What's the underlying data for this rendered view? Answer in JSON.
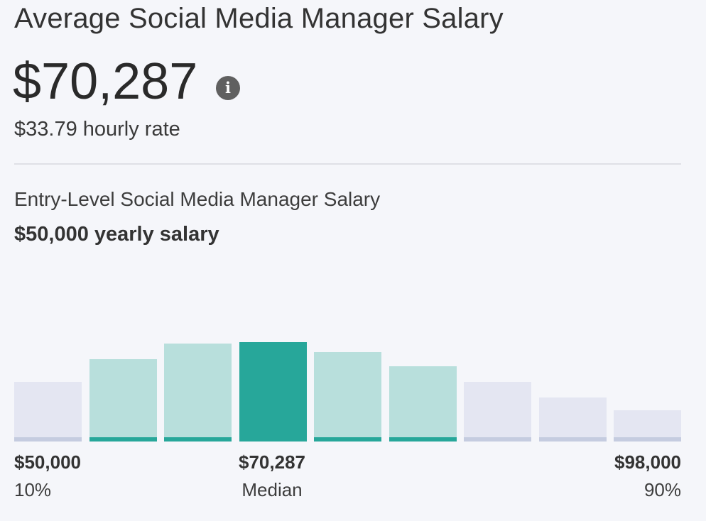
{
  "header": {
    "title": "Average Social Media Manager Salary"
  },
  "salary": {
    "amount": "$70,287",
    "info_icon": "info-icon",
    "hourly": "$33.79 hourly rate"
  },
  "entry_level": {
    "label": "Entry-Level Social Media Manager Salary",
    "value": "$50,000 yearly salary"
  },
  "chart_data": {
    "type": "bar",
    "values": [
      42,
      58,
      69,
      70,
      63,
      53,
      42,
      31,
      22
    ],
    "highlight": [
      "out",
      "mid",
      "mid",
      "median",
      "mid",
      "mid",
      "out",
      "out",
      "out"
    ],
    "colors": {
      "outer": "#e4e6f2",
      "inner": "#b8dfdc",
      "median": "#27a79a",
      "baseline_outer": "#c5cce0",
      "baseline_inner": "#27a79a"
    },
    "labels": {
      "low_amount": "$50,000",
      "low_percentile": "10%",
      "median_amount": "$70,287",
      "median_label": "Median",
      "high_amount": "$98,000",
      "high_percentile": "90%"
    }
  }
}
